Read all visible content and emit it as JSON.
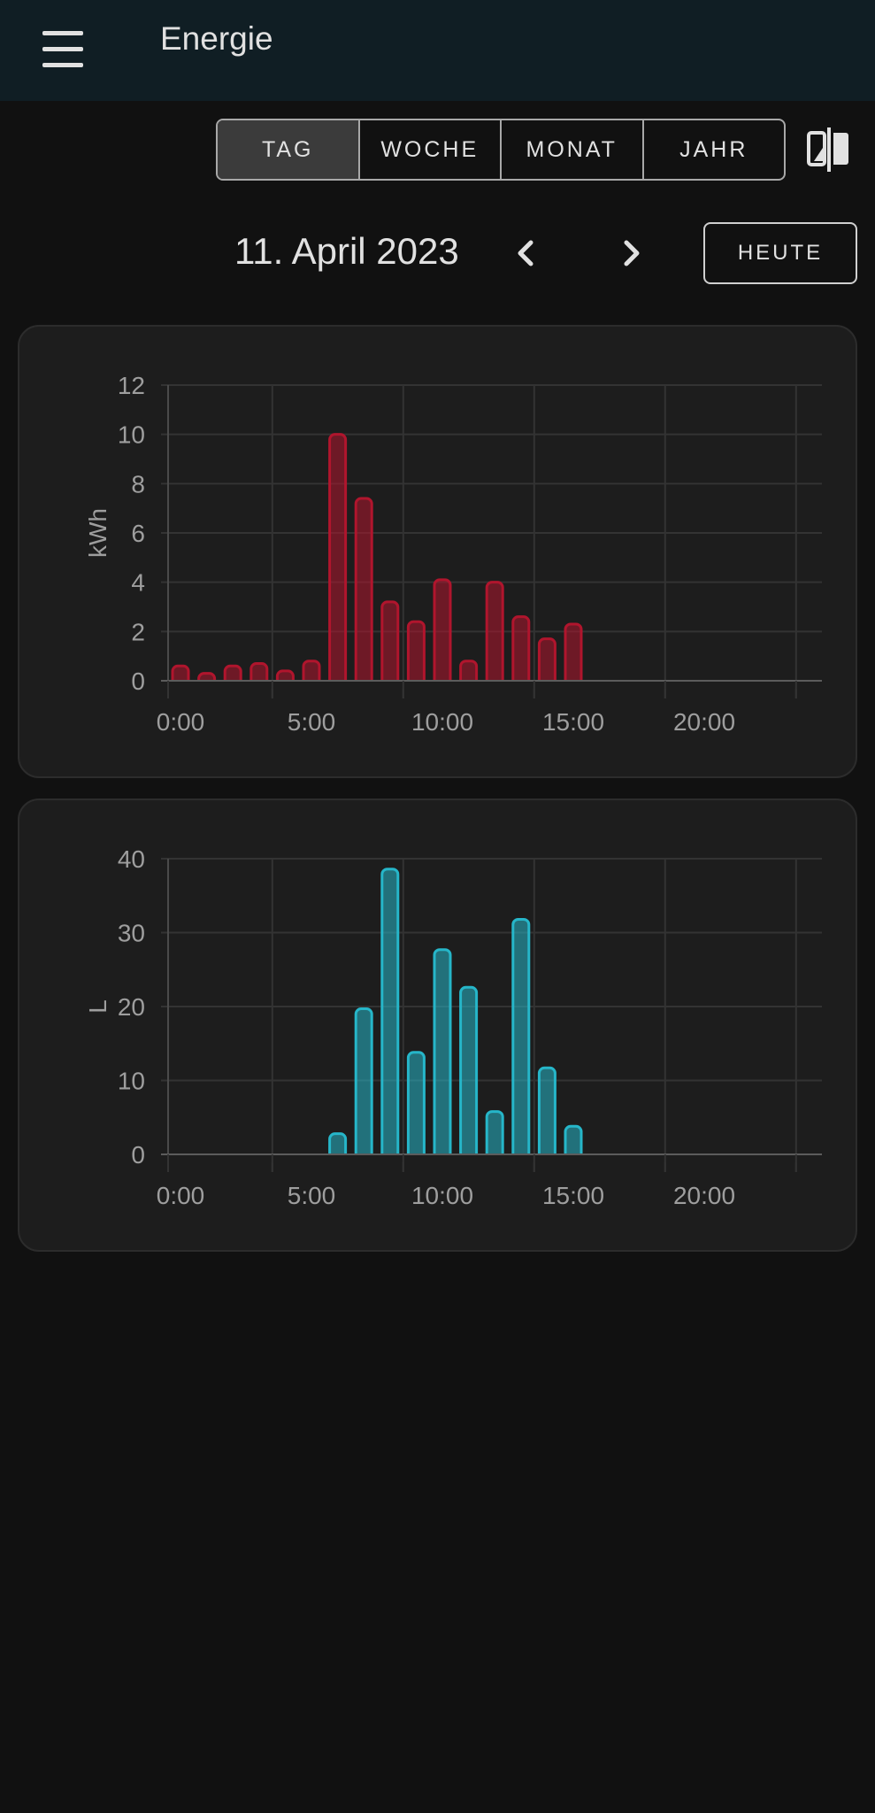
{
  "header": {
    "title": "Energie",
    "menu_icon": "menu-icon"
  },
  "period_selector": {
    "options": [
      "TAG",
      "WOCHE",
      "MONAT",
      "JAHR"
    ],
    "selected": "TAG",
    "compare_icon": "compare-icon"
  },
  "date_nav": {
    "date": "11. April 2023",
    "prev_icon": "chevron-left-icon",
    "next_icon": "chevron-right-icon",
    "today_label": "HEUTE"
  },
  "colors": {
    "electricity": "#b0152d",
    "water": "#26b6c9"
  },
  "chart_data": [
    {
      "type": "bar",
      "xlabel": "",
      "ylabel": "kWh",
      "ylim": [
        0,
        12
      ],
      "yticks": [
        "0",
        "2",
        "4",
        "6",
        "8",
        "10",
        "12"
      ],
      "xticks": [
        "0:00",
        "5:00",
        "10:00",
        "15:00",
        "20:00"
      ],
      "hours": [
        0,
        1,
        2,
        3,
        4,
        5,
        6,
        7,
        8,
        9,
        10,
        11,
        12,
        13,
        14,
        15
      ],
      "values": [
        0.6,
        0.3,
        0.6,
        0.7,
        0.4,
        0.8,
        10.0,
        7.4,
        3.2,
        2.4,
        4.1,
        0.8,
        4.0,
        2.6,
        1.7,
        2.3
      ],
      "grid": true
    },
    {
      "type": "bar",
      "xlabel": "",
      "ylabel": "L",
      "ylim": [
        0,
        40
      ],
      "yticks": [
        "0",
        "10",
        "20",
        "30",
        "40"
      ],
      "xticks": [
        "0:00",
        "5:00",
        "10:00",
        "15:00",
        "20:00"
      ],
      "hours": [
        6,
        7,
        8,
        9,
        10,
        11,
        12,
        13,
        14,
        15
      ],
      "values": [
        2.8,
        19.7,
        38.6,
        13.8,
        27.7,
        22.6,
        5.8,
        31.8,
        11.7,
        3.8
      ],
      "grid": true
    }
  ]
}
